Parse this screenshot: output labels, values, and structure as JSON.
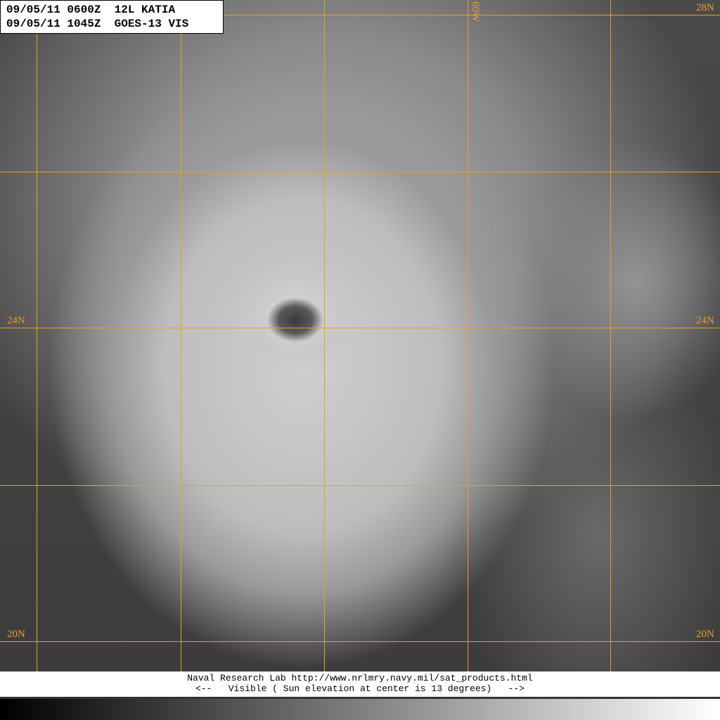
{
  "header": {
    "line1": "09/05/11 0600Z  12L KATIA",
    "line2": "09/05/11 1045Z  GOES-13 VIS"
  },
  "grid": {
    "color": "#e8a020",
    "lat_labels": [
      "28N",
      "24N",
      "24N",
      "20N",
      "20N"
    ],
    "lon_label": "60W"
  },
  "footer": {
    "line1": "Naval Research Lab http://www.nrlmry.navy.mil/sat_products.html",
    "line2": "<--   Visible ( Sun elevation at center is 13 degrees)   -->"
  },
  "scale": {
    "from": "#000000",
    "to": "#ffffff"
  }
}
